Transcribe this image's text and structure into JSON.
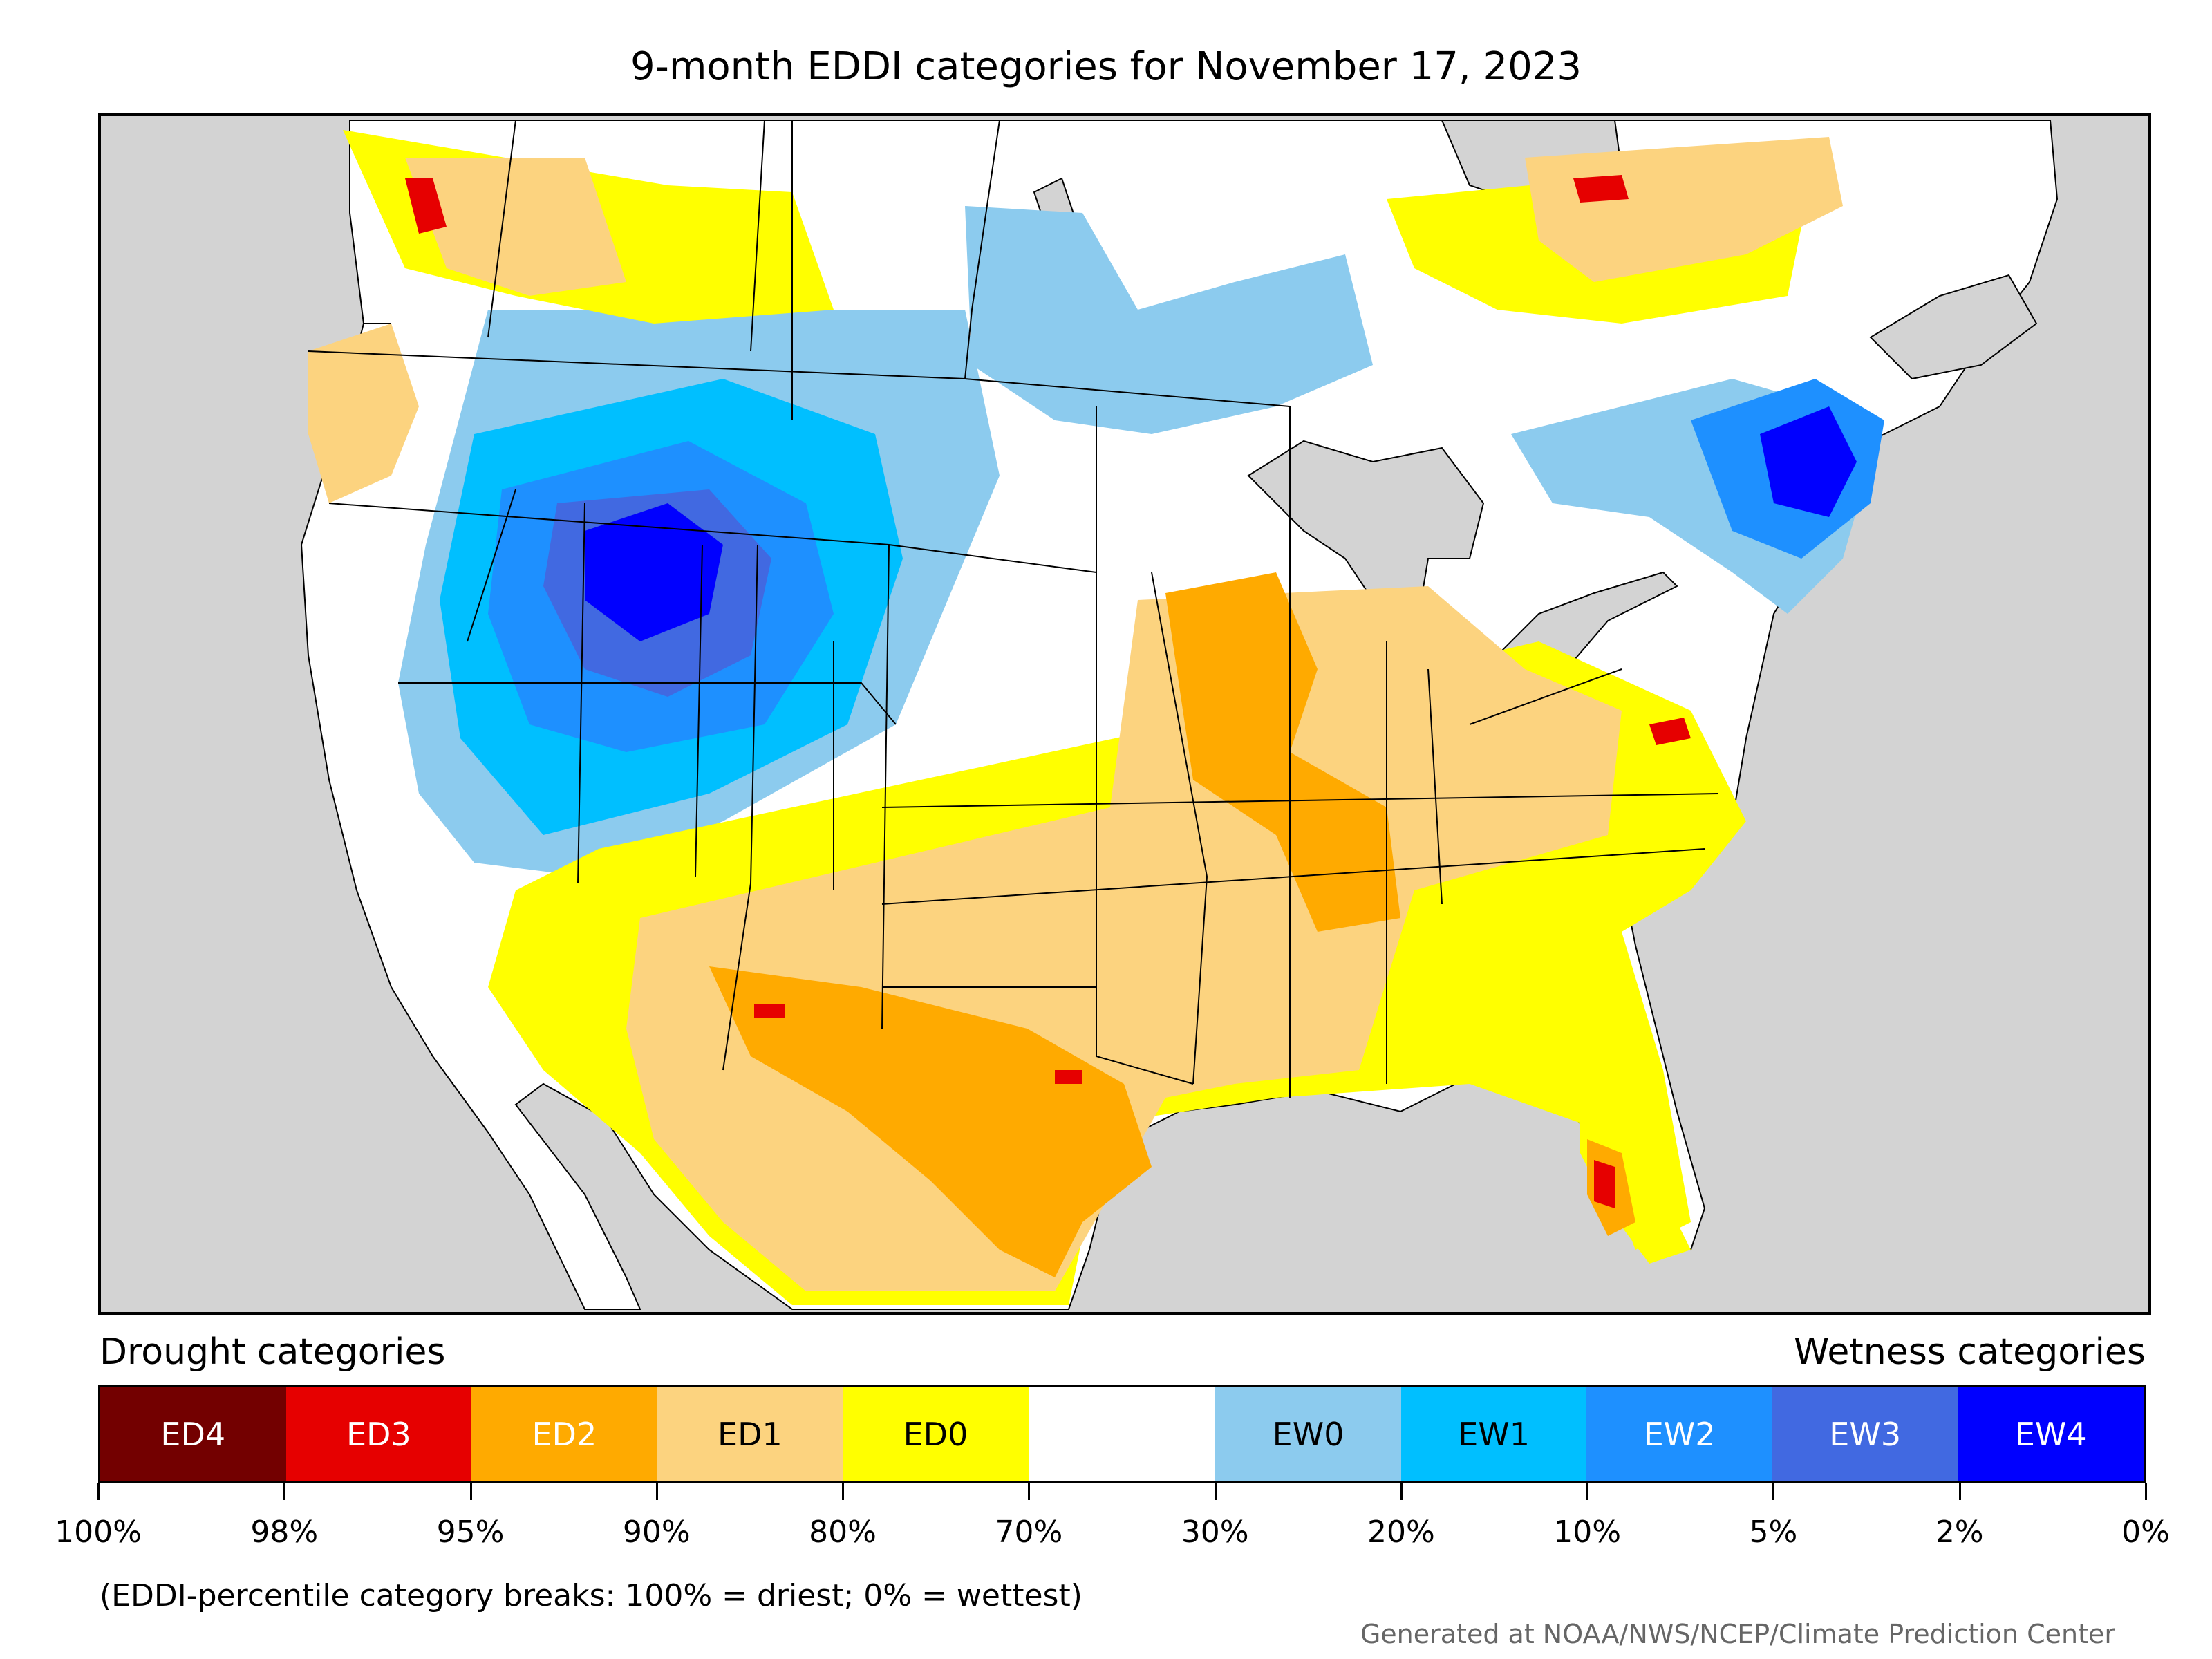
{
  "title": "9-month EDDI categories for November 17, 2023",
  "legend": {
    "drought_heading": "Drought categories",
    "wetness_heading": "Wetness categories",
    "categories": [
      {
        "label": "ED4",
        "color": "#730000",
        "text_color": "#ffffff"
      },
      {
        "label": "ED3",
        "color": "#e60000",
        "text_color": "#ffffff"
      },
      {
        "label": "ED2",
        "color": "#ffaa00",
        "text_color": "#ffffff"
      },
      {
        "label": "ED1",
        "color": "#fcd37f",
        "text_color": "#000000"
      },
      {
        "label": "ED0",
        "color": "#ffff00",
        "text_color": "#000000"
      },
      {
        "label": "",
        "color": "#ffffff",
        "text_color": "#000000"
      },
      {
        "label": "EW0",
        "color": "#8ccbee",
        "text_color": "#000000"
      },
      {
        "label": "EW1",
        "color": "#00bfff",
        "text_color": "#000000"
      },
      {
        "label": "EW2",
        "color": "#1e90ff",
        "text_color": "#ffffff"
      },
      {
        "label": "EW3",
        "color": "#4169e1",
        "text_color": "#ffffff"
      },
      {
        "label": "EW4",
        "color": "#0000ff",
        "text_color": "#ffffff"
      }
    ],
    "tick_labels": [
      "100%",
      "98%",
      "95%",
      "90%",
      "80%",
      "70%",
      "30%",
      "20%",
      "10%",
      "5%",
      "2%",
      "0%"
    ]
  },
  "note": "(EDDI-percentile category breaks: 100% = driest; 0% = wettest)",
  "credit": "Generated at NOAA/NWS/NCEP/Climate Prediction Center",
  "map": {
    "ocean_color": "#d3d3d3",
    "land_color": "#ffffff",
    "border_color": "#000000"
  }
}
